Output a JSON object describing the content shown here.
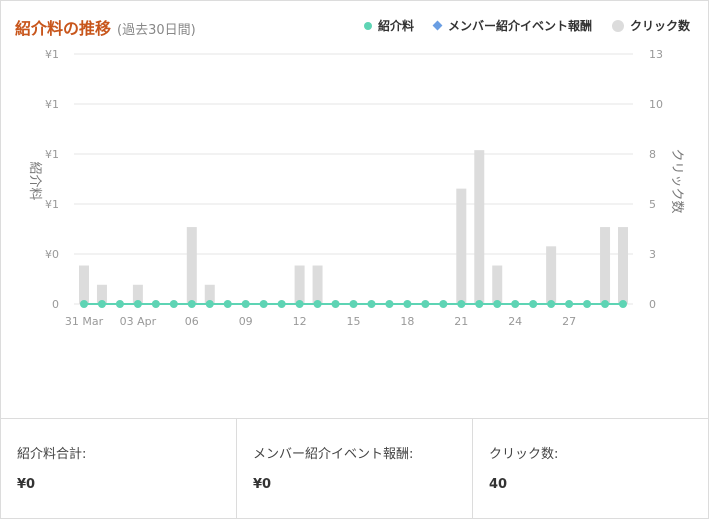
{
  "header": {
    "title": "紹介料の推移",
    "subtitle": "(過去30日間)"
  },
  "legend": [
    {
      "name": "紹介料",
      "color": "#5ed4b4"
    },
    {
      "name": "メンバー紹介イベント報酬",
      "color": "#6a9ee3"
    },
    {
      "name": "クリック数",
      "color": "#dcdcdc"
    }
  ],
  "chart_data": {
    "type": "bar",
    "y_left_label": "紹介料",
    "y_right_label": "クリック数",
    "y_left_ticks": [
      "0",
      "¥0",
      "¥1",
      "¥1",
      "¥1",
      "¥1"
    ],
    "y_right_ticks": [
      "0",
      "3",
      "5",
      "8",
      "10",
      "13"
    ],
    "y_right_range": [
      0,
      13
    ],
    "x_tick_labels": [
      {
        "index": 0,
        "label": "31 Mar"
      },
      {
        "index": 3,
        "label": "03 Apr"
      },
      {
        "index": 6,
        "label": "06"
      },
      {
        "index": 9,
        "label": "09"
      },
      {
        "index": 12,
        "label": "12"
      },
      {
        "index": 15,
        "label": "15"
      },
      {
        "index": 18,
        "label": "18"
      },
      {
        "index": 21,
        "label": "21"
      },
      {
        "index": 24,
        "label": "24"
      },
      {
        "index": 27,
        "label": "27"
      }
    ],
    "clicks": [
      2,
      1,
      0,
      1,
      0,
      0,
      4,
      1,
      0,
      0,
      0,
      0,
      2,
      2,
      0,
      0,
      0,
      0,
      0,
      0,
      0,
      6,
      8,
      2,
      0,
      0,
      3,
      0,
      0,
      4,
      4
    ],
    "referral_fee": [
      0,
      0,
      0,
      0,
      0,
      0,
      0,
      0,
      0,
      0,
      0,
      0,
      0,
      0,
      0,
      0,
      0,
      0,
      0,
      0,
      0,
      0,
      0,
      0,
      0,
      0,
      0,
      0,
      0,
      0,
      0
    ],
    "member_referral_reward": [
      0,
      0,
      0,
      0,
      0,
      0,
      0,
      0,
      0,
      0,
      0,
      0,
      0,
      0,
      0,
      0,
      0,
      0,
      0,
      0,
      0,
      0,
      0,
      0,
      0,
      0,
      0,
      0,
      0,
      0,
      0
    ],
    "colors": {
      "clicks": "#dcdcdc",
      "referral_fee": "#5ed4b4",
      "member_referral_reward": "#6a9ee3",
      "grid": "#e6e6e6",
      "axis_text": "#999999"
    }
  },
  "summary": [
    {
      "label": "紹介料合計:",
      "value": "¥0"
    },
    {
      "label": "メンバー紹介イベント報酬:",
      "value": "¥0"
    },
    {
      "label": "クリック数:",
      "value": "40"
    }
  ]
}
